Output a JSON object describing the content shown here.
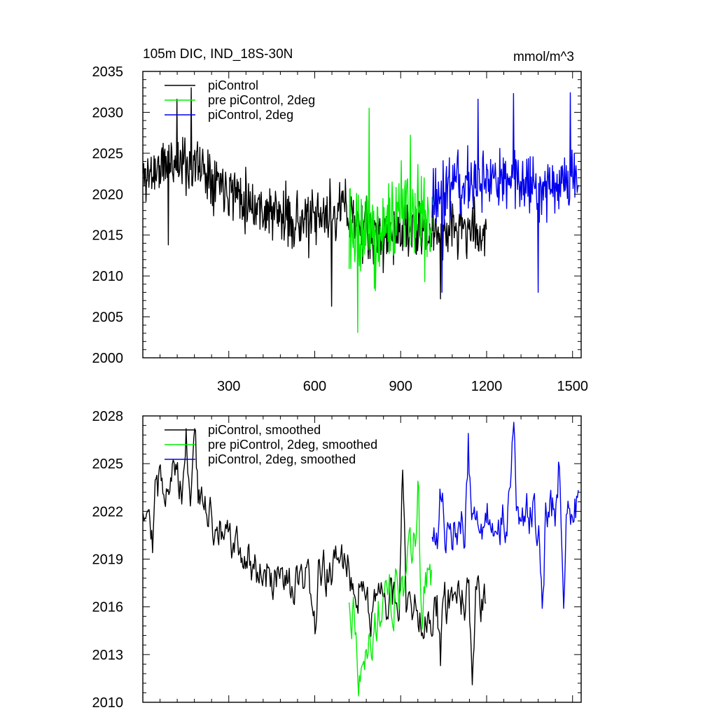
{
  "chart_data": [
    {
      "id": "raw",
      "type": "line",
      "title": "105m DIC, IND_18S-30N",
      "units": "mmol/m^3",
      "xlim": [
        0,
        1530
      ],
      "ylim": [
        2000,
        2035
      ],
      "x_major_ticks": [
        300,
        600,
        900,
        1200,
        1500
      ],
      "y_major_ticks": [
        2000,
        2005,
        2010,
        2015,
        2020,
        2025,
        2030,
        2035
      ],
      "x_tick_labels": [
        "300",
        "600",
        "900",
        "1200",
        "1500"
      ],
      "y_tick_labels": [
        "2000",
        "2005",
        "2010",
        "2015",
        "2020",
        "2025",
        "2030",
        "2035"
      ],
      "legend_position": "top-left",
      "series": [
        {
          "name": "piControl",
          "color": "#000000",
          "x_range": [
            1,
            1200
          ],
          "anchors": [
            [
              0,
              2022
            ],
            [
              100,
              2024
            ],
            [
              200,
              2023.5
            ],
            [
              300,
              2021
            ],
            [
              400,
              2018.5
            ],
            [
              500,
              2017
            ],
            [
              600,
              2016.5
            ],
            [
              700,
              2018.5
            ],
            [
              800,
              2014.5
            ],
            [
              900,
              2015.5
            ],
            [
              1000,
              2015
            ],
            [
              1100,
              2016
            ],
            [
              1200,
              2015
            ]
          ],
          "noise_amplitude": 3.5,
          "extremes": [
            [
              90,
              2013.8
            ],
            [
              120,
              2031.6
            ],
            [
              170,
              2033
            ],
            [
              660,
              2006.3
            ],
            [
              1040,
              2007.2
            ]
          ]
        },
        {
          "name": "pre piControl, 2deg",
          "color": "#00ee00",
          "x_range": [
            720,
            1010
          ],
          "anchors": [
            [
              720,
              2016.5
            ],
            [
              760,
              2014.5
            ],
            [
              820,
              2015.5
            ],
            [
              900,
              2017.5
            ],
            [
              960,
              2018.5
            ],
            [
              1010,
              2017.5
            ]
          ],
          "noise_amplitude": 5.5,
          "extremes": [
            [
              750,
              2003.1
            ],
            [
              790,
              2030.5
            ],
            [
              935,
              2027.2
            ],
            [
              985,
              2009.3
            ]
          ]
        },
        {
          "name": "piControl, 2deg",
          "color": "#0000ee",
          "x_range": [
            1010,
            1520
          ],
          "anchors": [
            [
              1010,
              2019.5
            ],
            [
              1100,
              2021
            ],
            [
              1200,
              2021.5
            ],
            [
              1300,
              2022
            ],
            [
              1400,
              2021
            ],
            [
              1520,
              2022
            ]
          ],
          "noise_amplitude": 3.8,
          "extremes": [
            [
              1045,
              2008
            ],
            [
              1170,
              2031.6
            ],
            [
              1295,
              2032.3
            ],
            [
              1380,
              2008
            ],
            [
              1492,
              2032.4
            ]
          ]
        }
      ]
    },
    {
      "id": "smoothed",
      "type": "line",
      "title": "",
      "xlim": [
        0,
        1530
      ],
      "ylim": [
        2010,
        2028
      ],
      "x_major_ticks": [
        300,
        600,
        900,
        1200,
        1500
      ],
      "y_major_ticks": [
        2010,
        2013,
        2016,
        2019,
        2022,
        2025,
        2028
      ],
      "y_tick_labels": [
        "2010",
        "2013",
        "2016",
        "2019",
        "2022",
        "2025",
        "2028"
      ],
      "legend_position": "top-left",
      "series": [
        {
          "name": "piControl, smoothed",
          "color": "#000000",
          "x_range": [
            1,
            1200
          ],
          "anchors": [
            [
              0,
              2022.5
            ],
            [
              100,
              2024.5
            ],
            [
              200,
              2022.5
            ],
            [
              300,
              2020
            ],
            [
              400,
              2018.5
            ],
            [
              500,
              2017
            ],
            [
              600,
              2017.5
            ],
            [
              700,
              2019
            ],
            [
              800,
              2016
            ],
            [
              900,
              2016.5
            ],
            [
              1000,
              2015.5
            ],
            [
              1100,
              2016.5
            ],
            [
              1200,
              2016
            ]
          ],
          "noise_amplitude": 1.9,
          "extremes": [
            [
              35,
              2019.4
            ],
            [
              150,
              2027.2
            ],
            [
              182,
              2027.2
            ],
            [
              600,
              2014.3
            ],
            [
              908,
              2024.6
            ],
            [
              1040,
              2012.3
            ],
            [
              1150,
              2011.1
            ]
          ]
        },
        {
          "name": "pre piControl, 2deg, smoothed",
          "color": "#00ee00",
          "x_range": [
            720,
            1010
          ],
          "anchors": [
            [
              720,
              2016.5
            ],
            [
              760,
              2013.5
            ],
            [
              820,
              2015
            ],
            [
              900,
              2017.5
            ],
            [
              960,
              2020
            ],
            [
              1010,
              2018
            ]
          ],
          "noise_amplitude": 2.4,
          "extremes": [
            [
              752,
              2010.4
            ],
            [
              960,
              2023.9
            ],
            [
              975,
              2014.6
            ]
          ]
        },
        {
          "name": "piControl, 2deg, smoothed",
          "color": "#0000ee",
          "x_range": [
            1010,
            1520
          ],
          "anchors": [
            [
              1010,
              2020
            ],
            [
              1100,
              2021
            ],
            [
              1200,
              2021.5
            ],
            [
              1300,
              2022
            ],
            [
              1400,
              2021.5
            ],
            [
              1520,
              2022.5
            ]
          ],
          "noise_amplitude": 2.1,
          "extremes": [
            [
              1040,
              2022.8
            ],
            [
              1135,
              2026.9
            ],
            [
              1295,
              2027.6
            ],
            [
              1395,
              2015.9
            ],
            [
              1450,
              2025.1
            ],
            [
              1470,
              2015.9
            ]
          ]
        }
      ]
    }
  ]
}
